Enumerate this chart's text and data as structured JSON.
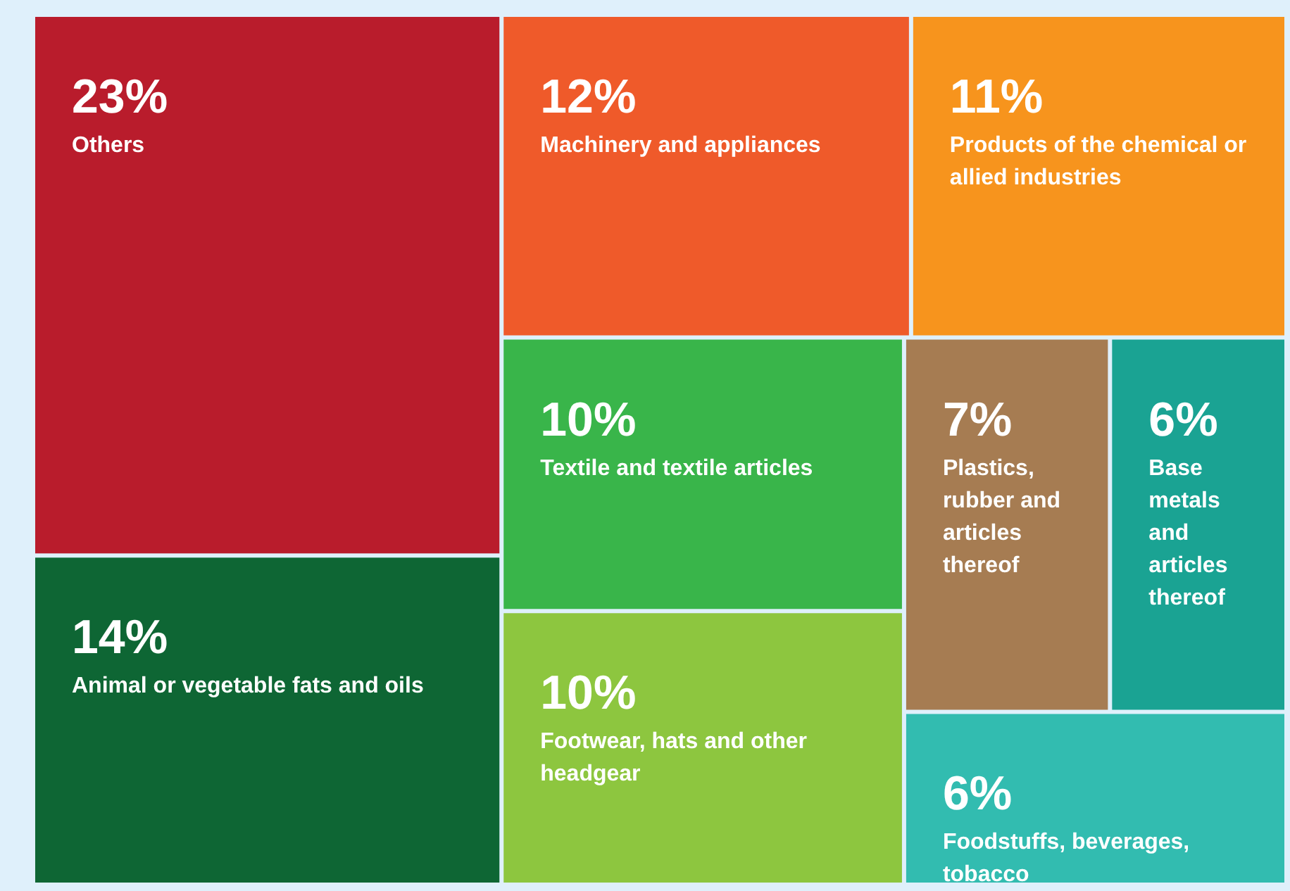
{
  "chart_data": {
    "type": "other",
    "categories": [
      "Others",
      "Animal or vegetable fats and oils",
      "Machinery and appliances",
      "Products of the chemical or allied industries",
      "Textile and textile articles",
      "Footwear, hats and other headgear",
      "Plastics, rubber and articles thereof",
      "Base metals and articles thereof",
      "Foodstuffs, beverages, tobacco"
    ],
    "values": [
      23,
      14,
      12,
      11,
      10,
      10,
      7,
      6,
      6
    ],
    "value_labels": [
      "23%",
      "14%",
      "12%",
      "11%",
      "10%",
      "10%",
      "7%",
      "6%",
      "6%"
    ],
    "colors": [
      "#b91c2c",
      "#0e6634",
      "#ef5a2a",
      "#f7941d",
      "#39b54a",
      "#8dc63f",
      "#a67c52",
      "#1aa393",
      "#32bcb0"
    ]
  }
}
